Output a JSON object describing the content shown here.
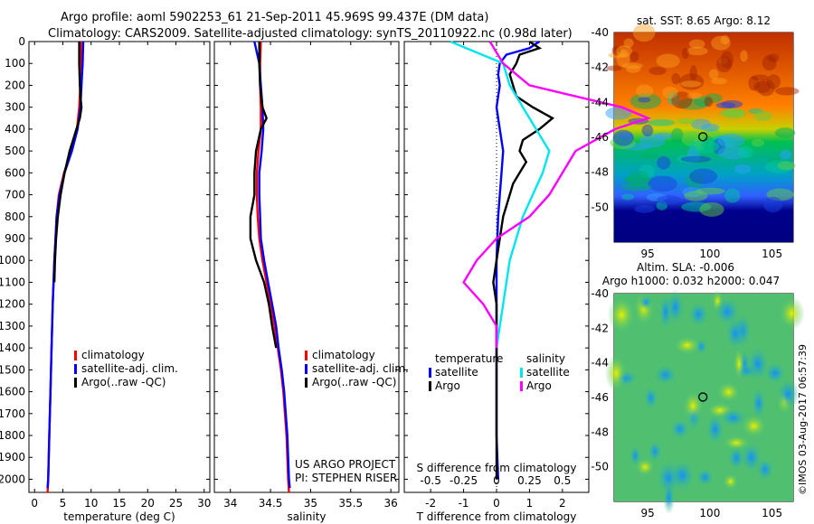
{
  "header": {
    "title_line1": "Argo profile: aoml 5902253_61 21-Sep-2011 45.969S 99.437E (DM data)",
    "title_line2": "Climatology: CARS2009. Satellite-adjusted climatology: synTS_20110922.nc (0.98d later)"
  },
  "stamp": "©IMOS 03-Aug-2017 06:57:39",
  "colors": {
    "clim": "#ff0000",
    "sat": "#0000ff",
    "argo": "#000000",
    "sat_s": "#00e5ee",
    "argo_s": "#ff00ff"
  },
  "depth_ticks": [
    "0",
    "100",
    "200",
    "300",
    "400",
    "500",
    "600",
    "700",
    "800",
    "900",
    "1000",
    "1100",
    "1200",
    "1300",
    "1400",
    "1500",
    "1600",
    "1700",
    "1800",
    "1900",
    "2000"
  ],
  "chart_data": [
    {
      "type": "line",
      "xlabel": "temperature (deg C)",
      "xlim": [
        -1,
        31
      ],
      "ylim": [
        2060,
        0
      ],
      "xticks": [
        "0",
        "5",
        "10",
        "15",
        "20",
        "25",
        "30"
      ],
      "legend": [
        "climatology",
        "satellite-adj. clim.",
        "Argo(..raw -QC)"
      ],
      "legend_placement": "bottom-center",
      "series": [
        {
          "name": "climatology",
          "color": "#ff0000",
          "depth": [
            0,
            100,
            200,
            300,
            400,
            500,
            600,
            700,
            800,
            900,
            1000,
            1200,
            1400,
            1600,
            1800,
            2000,
            2060
          ],
          "values": [
            8.2,
            8.2,
            8.1,
            7.9,
            7.5,
            6.5,
            5.2,
            4.3,
            3.9,
            3.7,
            3.5,
            3.2,
            3.0,
            2.8,
            2.6,
            2.4,
            2.3
          ]
        },
        {
          "name": "satellite-adj. clim.",
          "color": "#0000ff",
          "depth": [
            0,
            100,
            200,
            300,
            400,
            500,
            600,
            700,
            800,
            900,
            1000,
            1200,
            1400,
            1600,
            1800,
            2000,
            2040
          ],
          "values": [
            8.6,
            8.5,
            8.3,
            8.1,
            7.6,
            6.6,
            5.3,
            4.4,
            3.9,
            3.7,
            3.5,
            3.2,
            3.0,
            2.8,
            2.6,
            2.4,
            2.3
          ]
        },
        {
          "name": "Argo(..raw -QC)",
          "color": "#000000",
          "depth": [
            0,
            100,
            200,
            250,
            300,
            350,
            400,
            450,
            500,
            600,
            700,
            800,
            900,
            1000,
            1100
          ],
          "values": [
            7.9,
            7.9,
            8.0,
            8.1,
            8.3,
            8.0,
            7.4,
            6.8,
            6.2,
            5.3,
            4.6,
            4.1,
            3.8,
            3.6,
            3.5
          ]
        }
      ]
    },
    {
      "type": "line",
      "xlabel": "salinity",
      "xlim": [
        33.8,
        36.1
      ],
      "ylim": [
        2060,
        0
      ],
      "xticks": [
        "34",
        "34.5",
        "35",
        "35.5",
        "36"
      ],
      "legend": [
        "climatology",
        "satellite-adj. clim.",
        "Argo(..raw -QC)"
      ],
      "legend_placement": "center",
      "annotations": [
        "US ARGO PROJECT",
        "PI: STEPHEN RISER"
      ],
      "series": [
        {
          "name": "climatology",
          "color": "#ff0000",
          "depth": [
            0,
            100,
            200,
            300,
            400,
            500,
            600,
            700,
            800,
            900,
            1000,
            1100,
            1200,
            1300,
            1400,
            1500,
            1600,
            1800,
            2000,
            2060
          ],
          "values": [
            34.38,
            34.37,
            34.37,
            34.38,
            34.38,
            34.35,
            34.33,
            34.33,
            34.34,
            34.36,
            34.4,
            34.45,
            34.5,
            34.55,
            34.59,
            34.63,
            34.66,
            34.7,
            34.72,
            34.73
          ]
        },
        {
          "name": "satellite-adj. clim.",
          "color": "#0000ff",
          "depth": [
            0,
            50,
            100,
            200,
            300,
            400,
            500,
            600,
            700,
            800,
            900,
            1000,
            1100,
            1200,
            1300,
            1400,
            1500,
            1600,
            1800,
            2000,
            2040
          ],
          "values": [
            34.3,
            34.33,
            34.36,
            34.38,
            34.4,
            34.41,
            34.39,
            34.36,
            34.36,
            34.37,
            34.38,
            34.42,
            34.47,
            34.52,
            34.57,
            34.6,
            34.64,
            34.67,
            34.71,
            34.73,
            34.74
          ]
        },
        {
          "name": "Argo(..raw -QC)",
          "color": "#000000",
          "depth": [
            0,
            100,
            200,
            300,
            350,
            400,
            500,
            600,
            700,
            800,
            900,
            1000,
            1100,
            1200,
            1300,
            1400
          ],
          "values": [
            34.36,
            34.36,
            34.37,
            34.4,
            34.45,
            34.38,
            34.32,
            34.3,
            34.3,
            34.25,
            34.25,
            34.32,
            34.42,
            34.48,
            34.52,
            34.57
          ]
        }
      ]
    },
    {
      "type": "line",
      "xlabel": "T difference from climatology",
      "xlabel_top": "S difference from climatology",
      "xlim": [
        -2.8,
        2.8
      ],
      "ylim": [
        2060,
        0
      ],
      "xticks": [
        "-2",
        "-1",
        "0",
        "1",
        "2"
      ],
      "xticks_top": [
        "-0.5",
        "-0.25",
        "0",
        "0.25",
        "0.5"
      ],
      "legend_headings": [
        "temperature",
        "salinity"
      ],
      "legend": [
        "satellite",
        "Argo",
        "satellite",
        "Argo"
      ],
      "legend_placement": "bottom-center",
      "series": [
        {
          "name": "satellite",
          "color": "#0000ff",
          "depth": [
            0,
            30,
            60,
            100,
            150,
            200,
            300,
            400,
            500,
            600,
            700,
            800,
            1000,
            1200,
            1400,
            1600,
            1800,
            2000
          ],
          "values": [
            1.3,
            1.0,
            0.3,
            0.1,
            0.05,
            0.1,
            0.0,
            0.1,
            0.2,
            0.15,
            0.1,
            0.05,
            0.0,
            0.0,
            0.0,
            0.0,
            0.0,
            0.05
          ]
        },
        {
          "name": "Argo",
          "color": "#000000",
          "depth": [
            0,
            30,
            60,
            100,
            150,
            200,
            250,
            300,
            350,
            400,
            450,
            500,
            550,
            600,
            650,
            700,
            800,
            900,
            1000,
            1100,
            1200,
            1600,
            2000
          ],
          "values": [
            1.0,
            1.3,
            0.7,
            0.6,
            0.4,
            0.5,
            0.6,
            1.1,
            1.7,
            1.3,
            0.8,
            0.7,
            0.9,
            0.7,
            0.5,
            0.4,
            0.2,
            0.1,
            0.0,
            -0.1,
            0.0,
            0.0,
            0.0
          ]
        },
        {
          "name": "satellite",
          "color": "#00e5ee",
          "depth": [
            0,
            50,
            100,
            200,
            300,
            400,
            500,
            600,
            800,
            1000,
            1200,
            1400
          ],
          "values": [
            -0.35,
            -0.15,
            0.05,
            0.1,
            0.2,
            0.3,
            0.4,
            0.35,
            0.2,
            0.1,
            0.05,
            0.0
          ]
        },
        {
          "name": "Argo",
          "color": "#ff00ff",
          "depth": [
            0,
            100,
            200,
            300,
            350,
            400,
            500,
            600,
            700,
            800,
            900,
            1000,
            1100,
            1200,
            1300,
            1400
          ],
          "values": [
            -0.05,
            0.05,
            0.25,
            0.95,
            1.15,
            0.9,
            0.6,
            0.5,
            0.4,
            0.25,
            0.0,
            -0.15,
            -0.25,
            -0.1,
            0.0,
            0.0
          ]
        }
      ]
    },
    {
      "type": "heatmap",
      "title": "sat. SST: 8.65 Argo: 8.12",
      "xticks": [
        "95",
        "100",
        "105"
      ],
      "yticks": [
        "-40",
        "-42",
        "-44",
        "-46",
        "-48",
        "-50"
      ],
      "xlim": [
        92.3,
        106.7
      ],
      "ylim": [
        -52,
        -40
      ],
      "marker": {
        "lon": 99.44,
        "lat": -45.97
      }
    },
    {
      "type": "heatmap",
      "title_line1": "Altim. SLA: -0.006",
      "title_line2": "Argo h1000: 0.032 h2000: 0.047",
      "xticks": [
        "95",
        "100",
        "105"
      ],
      "yticks": [
        "-40",
        "-42",
        "-44",
        "-46",
        "-48",
        "-50"
      ],
      "xlim": [
        92.3,
        106.7
      ],
      "ylim": [
        -52,
        -40
      ],
      "marker": {
        "lon": 99.44,
        "lat": -45.97
      }
    }
  ]
}
